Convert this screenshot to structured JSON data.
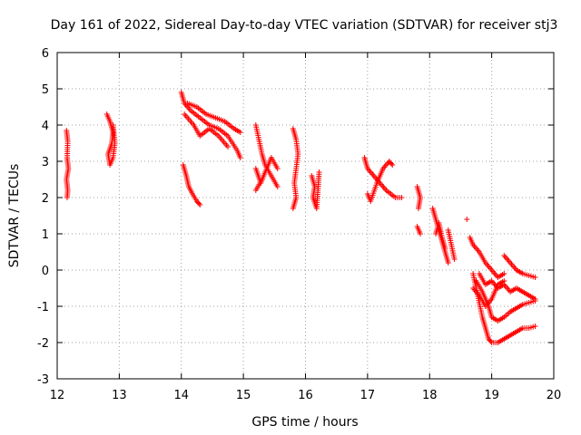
{
  "chart_data": {
    "type": "scatter",
    "title": "Day 161 of 2022, Sidereal Day-to-day VTEC variation (SDTVAR) for receiver stj3",
    "xlabel": "GPS time / hours",
    "ylabel": "SDTVAR / TECUs",
    "xlim": [
      12,
      20
    ],
    "ylim": [
      -3,
      6
    ],
    "xticks": [
      12,
      13,
      14,
      15,
      16,
      17,
      18,
      19,
      20
    ],
    "yticks": [
      -3,
      -2,
      -1,
      0,
      1,
      2,
      3,
      4,
      5,
      6
    ],
    "grid": true,
    "marker": "+",
    "color": "#ff0000",
    "series": [
      {
        "name": "SDTVAR",
        "segments": [
          [
            [
              12.15,
              3.85
            ],
            [
              12.17,
              3.55
            ],
            [
              12.16,
              3.1
            ],
            [
              12.18,
              2.8
            ],
            [
              12.15,
              2.5
            ],
            [
              12.17,
              2.2
            ],
            [
              12.16,
              2.0
            ]
          ],
          [
            [
              12.8,
              4.3
            ],
            [
              12.85,
              4.1
            ],
            [
              12.9,
              3.8
            ],
            [
              12.88,
              3.5
            ],
            [
              12.82,
              3.2
            ],
            [
              12.85,
              2.9
            ],
            [
              12.9,
              3.1
            ],
            [
              12.93,
              3.5
            ],
            [
              12.9,
              4.0
            ]
          ],
          [
            [
              14.0,
              4.9
            ],
            [
              14.05,
              4.6
            ],
            [
              14.15,
              4.4
            ],
            [
              14.3,
              4.2
            ],
            [
              14.45,
              4.0
            ],
            [
              14.6,
              3.9
            ],
            [
              14.75,
              3.7
            ],
            [
              14.9,
              3.3
            ],
            [
              14.95,
              3.1
            ]
          ],
          [
            [
              14.1,
              4.6
            ],
            [
              14.25,
              4.5
            ],
            [
              14.4,
              4.3
            ],
            [
              14.55,
              4.2
            ],
            [
              14.7,
              4.1
            ],
            [
              14.85,
              3.9
            ],
            [
              14.95,
              3.8
            ]
          ],
          [
            [
              14.05,
              4.3
            ],
            [
              14.2,
              4.0
            ],
            [
              14.3,
              3.7
            ],
            [
              14.45,
              3.9
            ],
            [
              14.6,
              3.7
            ],
            [
              14.75,
              3.4
            ]
          ],
          [
            [
              14.03,
              2.9
            ],
            [
              14.08,
              2.6
            ],
            [
              14.12,
              2.3
            ],
            [
              14.18,
              2.1
            ],
            [
              14.25,
              1.9
            ],
            [
              14.3,
              1.8
            ]
          ],
          [
            [
              15.2,
              4.0
            ],
            [
              15.25,
              3.6
            ],
            [
              15.3,
              3.2
            ],
            [
              15.35,
              2.9
            ],
            [
              15.45,
              2.6
            ],
            [
              15.55,
              2.3
            ]
          ],
          [
            [
              15.2,
              2.8
            ],
            [
              15.28,
              2.4
            ],
            [
              15.35,
              2.7
            ],
            [
              15.45,
              3.1
            ],
            [
              15.55,
              2.8
            ]
          ],
          [
            [
              15.2,
              2.2
            ],
            [
              15.3,
              2.5
            ]
          ],
          [
            [
              15.8,
              3.9
            ],
            [
              15.85,
              3.6
            ],
            [
              15.88,
              3.2
            ],
            [
              15.85,
              2.8
            ],
            [
              15.82,
              2.4
            ],
            [
              15.85,
              2.0
            ],
            [
              15.8,
              1.7
            ]
          ],
          [
            [
              16.1,
              2.6
            ],
            [
              16.15,
              2.3
            ],
            [
              16.12,
              2.0
            ],
            [
              16.18,
              1.7
            ],
            [
              16.2,
              2.2
            ],
            [
              16.22,
              2.7
            ]
          ],
          [
            [
              16.95,
              3.1
            ],
            [
              17.0,
              2.8
            ],
            [
              17.1,
              2.6
            ],
            [
              17.2,
              2.4
            ],
            [
              17.3,
              2.2
            ],
            [
              17.45,
              2.0
            ],
            [
              17.55,
              2.0
            ]
          ],
          [
            [
              17.0,
              2.1
            ],
            [
              17.05,
              1.9
            ],
            [
              17.15,
              2.4
            ],
            [
              17.25,
              2.8
            ],
            [
              17.35,
              3.0
            ],
            [
              17.4,
              2.9
            ]
          ],
          [
            [
              17.8,
              2.3
            ],
            [
              17.85,
              2.0
            ],
            [
              17.82,
              1.7
            ]
          ],
          [
            [
              17.8,
              1.2
            ],
            [
              17.85,
              1.0
            ]
          ],
          [
            [
              18.05,
              1.7
            ],
            [
              18.1,
              1.4
            ],
            [
              18.15,
              1.1
            ],
            [
              18.2,
              0.8
            ],
            [
              18.25,
              0.5
            ],
            [
              18.3,
              0.2
            ]
          ],
          [
            [
              18.1,
              1.0
            ],
            [
              18.15,
              1.3
            ],
            [
              18.2,
              0.9
            ],
            [
              18.25,
              0.6
            ]
          ],
          [
            [
              18.3,
              1.1
            ],
            [
              18.35,
              0.7
            ],
            [
              18.4,
              0.3
            ]
          ],
          [
            [
              18.6,
              1.4
            ]
          ],
          [
            [
              18.65,
              0.9
            ],
            [
              18.7,
              0.7
            ],
            [
              18.8,
              0.5
            ],
            [
              18.9,
              0.2
            ],
            [
              19.0,
              0.0
            ],
            [
              19.1,
              -0.2
            ],
            [
              19.2,
              -0.1
            ]
          ],
          [
            [
              19.2,
              0.4
            ],
            [
              19.3,
              0.2
            ],
            [
              19.4,
              0.0
            ],
            [
              19.5,
              -0.1
            ],
            [
              19.6,
              -0.15
            ],
            [
              19.7,
              -0.2
            ]
          ],
          [
            [
              18.7,
              -0.1
            ],
            [
              18.75,
              -0.5
            ],
            [
              18.8,
              -0.9
            ],
            [
              18.85,
              -1.3
            ],
            [
              18.9,
              -1.6
            ],
            [
              18.95,
              -1.9
            ],
            [
              19.0,
              -2.0
            ],
            [
              19.1,
              -2.0
            ]
          ],
          [
            [
              19.1,
              -2.0
            ],
            [
              19.2,
              -1.9
            ],
            [
              19.3,
              -1.8
            ],
            [
              19.4,
              -1.7
            ],
            [
              19.5,
              -1.6
            ],
            [
              19.6,
              -1.6
            ],
            [
              19.7,
              -1.55
            ]
          ],
          [
            [
              18.75,
              -0.3
            ],
            [
              18.85,
              -0.6
            ],
            [
              18.95,
              -1.0
            ],
            [
              19.0,
              -1.3
            ],
            [
              19.1,
              -1.4
            ],
            [
              19.2,
              -1.3
            ],
            [
              19.3,
              -1.15
            ],
            [
              19.4,
              -1.05
            ],
            [
              19.5,
              -0.95
            ],
            [
              19.6,
              -0.9
            ],
            [
              19.7,
              -0.85
            ]
          ],
          [
            [
              18.8,
              -0.1
            ],
            [
              18.9,
              -0.4
            ],
            [
              19.0,
              -0.3
            ],
            [
              19.1,
              -0.5
            ],
            [
              19.2,
              -0.4
            ],
            [
              19.3,
              -0.6
            ],
            [
              19.4,
              -0.5
            ],
            [
              19.5,
              -0.6
            ],
            [
              19.6,
              -0.7
            ],
            [
              19.7,
              -0.8
            ]
          ],
          [
            [
              18.7,
              -0.5
            ],
            [
              18.8,
              -0.7
            ],
            [
              18.9,
              -1.0
            ],
            [
              19.0,
              -0.8
            ],
            [
              19.1,
              -0.4
            ],
            [
              19.2,
              -0.3
            ]
          ]
        ]
      }
    ]
  }
}
